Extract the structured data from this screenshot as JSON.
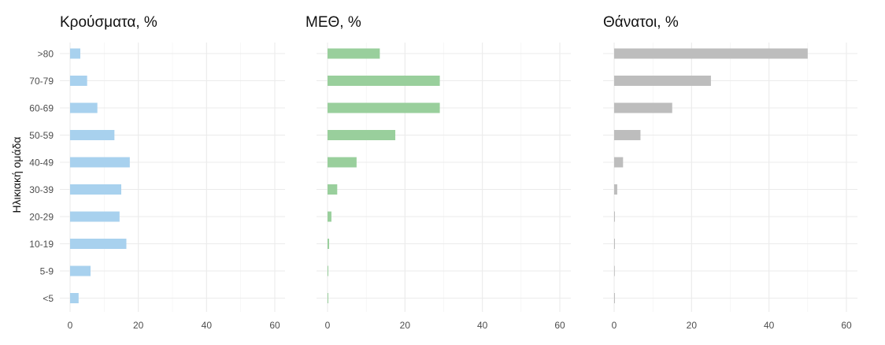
{
  "chart_data": {
    "type": "bar",
    "orientation": "horizontal",
    "ylabel": "Ηλικιακή ομάδα",
    "categories": [
      ">80",
      "70-79",
      "60-69",
      "50-59",
      "40-49",
      "30-39",
      "20-29",
      "10-19",
      "5-9",
      "<5"
    ],
    "xlim": [
      0,
      60
    ],
    "xticks": [
      0,
      20,
      40,
      60
    ],
    "grid": true,
    "legend": "none",
    "panels": [
      {
        "title": "Κρούσματα, %",
        "color": "#a8d1ee",
        "values": [
          3.0,
          5.0,
          8.0,
          13.0,
          17.5,
          15.0,
          14.5,
          16.5,
          6.0,
          2.5
        ]
      },
      {
        "title": "ΜΕΘ, %",
        "color": "#99cf9c",
        "values": [
          13.5,
          29.0,
          29.0,
          17.5,
          7.5,
          2.5,
          1.0,
          0.4,
          0.2,
          0.2
        ]
      },
      {
        "title": "Θάνατοι, %",
        "color": "#bdbdbd",
        "values": [
          50.0,
          25.0,
          15.0,
          6.8,
          2.3,
          0.8,
          0.1,
          0.1,
          0.0,
          0.1
        ]
      }
    ]
  }
}
